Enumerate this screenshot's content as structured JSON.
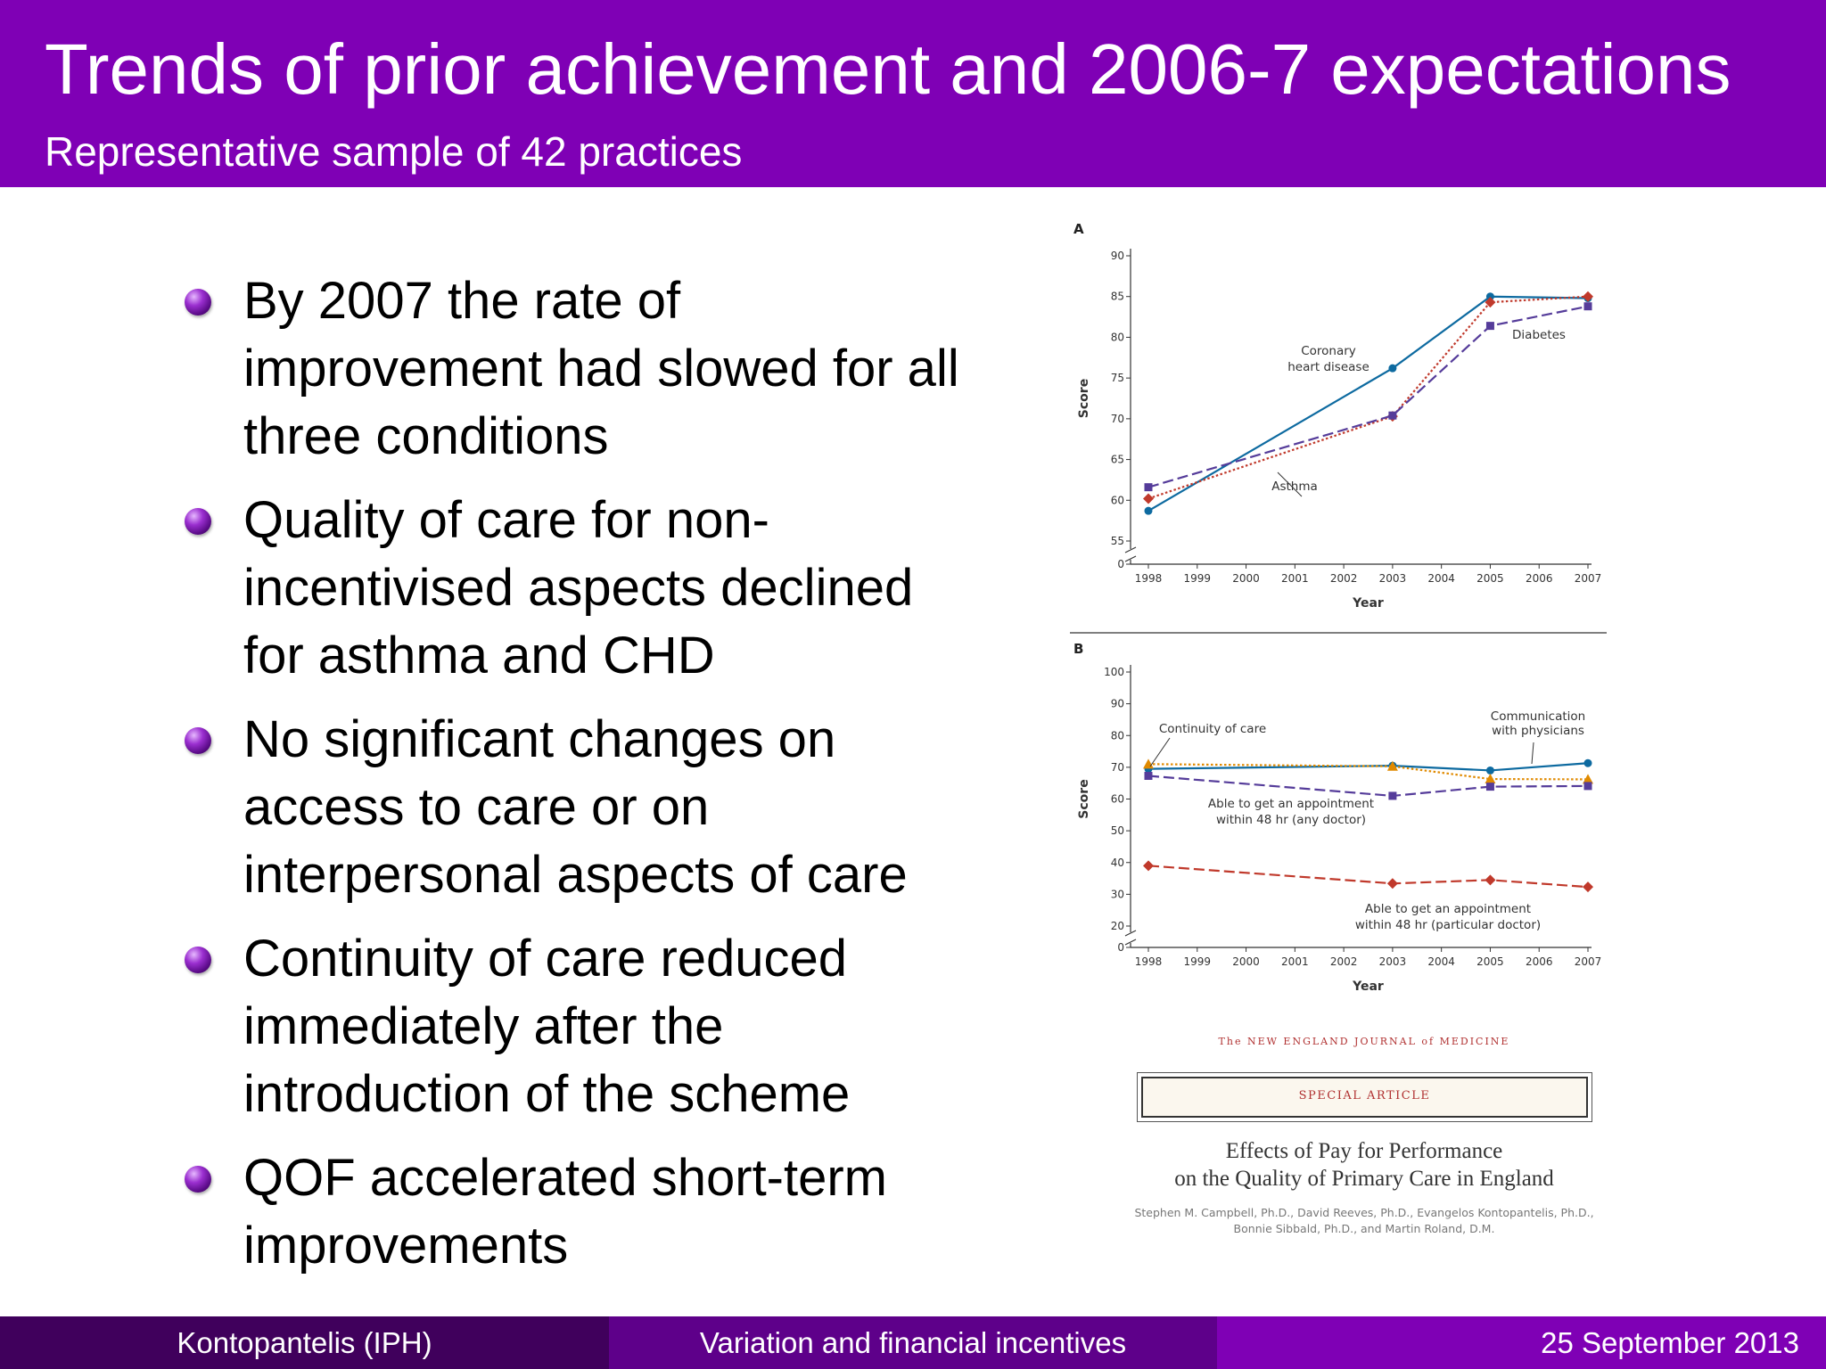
{
  "slide": {
    "title": "Trends of prior achievement and 2006-7 expectations",
    "subtitle": "Representative sample of 42 practices",
    "bullets": [
      "By 2007 the rate of improvement had slowed for all three conditions",
      "Quality of care for non-incentivised aspects declined for asthma and CHD",
      "No significant changes on access to care or on interpersonal aspects of care",
      "Continuity of care reduced immediately after the introduction of the scheme",
      "QOF accelerated short-term improvements"
    ],
    "colors": {
      "header": "#7f00b5",
      "footer_left": "#40005c",
      "footer_mid": "#5e008a",
      "footer_right": "#7f00b5"
    }
  },
  "footer": {
    "left": "Kontopantelis  (IPH)",
    "center": "Variation and financial incentives",
    "right": "25 September 2013"
  },
  "article": {
    "journal": "The NEW ENGLAND JOURNAL of MEDICINE",
    "section": "SPECIAL ARTICLE",
    "title_line1": "Effects of Pay for Performance",
    "title_line2": "on the Quality of Primary Care in England",
    "authors_line1": "Stephen M. Campbell, Ph.D., David Reeves, Ph.D., Evangelos Kontopantelis, Ph.D.,",
    "authors_line2": "Bonnie Sibbald, Ph.D., and Martin Roland, D.M."
  },
  "chart_data": [
    {
      "type": "line",
      "panel": "A",
      "xlabel": "Year",
      "ylabel": "Score",
      "x_ticks": [
        "1998",
        "1999",
        "2000",
        "2001",
        "2002",
        "2003",
        "2004",
        "2005",
        "2006",
        "2007"
      ],
      "y_ticks": [
        0,
        55,
        60,
        65,
        70,
        75,
        80,
        85,
        90
      ],
      "ylim": [
        55,
        90
      ],
      "axis_break": true,
      "series": [
        {
          "name": "Coronary heart disease",
          "color": "#0d6aa0",
          "dash": "solid",
          "marker": "circle",
          "x": [
            1998,
            2003,
            2005,
            2007
          ],
          "y": [
            58.7,
            76.2,
            85.0,
            84.8
          ]
        },
        {
          "name": "Asthma",
          "color": "#c0392b",
          "dash": "dotted",
          "marker": "diamond",
          "x": [
            1998,
            2003,
            2005,
            2007
          ],
          "y": [
            60.2,
            70.3,
            84.3,
            85.0
          ]
        },
        {
          "name": "Diabetes",
          "color": "#553c9a",
          "dash": "dashed",
          "marker": "square",
          "x": [
            1998,
            2003,
            2005,
            2007
          ],
          "y": [
            61.6,
            70.4,
            81.4,
            83.8
          ]
        }
      ],
      "annotations": [
        "Coronary",
        "heart disease",
        "Asthma",
        "Diabetes"
      ]
    },
    {
      "type": "line",
      "panel": "B",
      "xlabel": "Year",
      "ylabel": "Score",
      "x_ticks": [
        "1998",
        "1999",
        "2000",
        "2001",
        "2002",
        "2003",
        "2004",
        "2005",
        "2006",
        "2007"
      ],
      "y_ticks": [
        0,
        20,
        30,
        40,
        50,
        60,
        70,
        80,
        90,
        100
      ],
      "ylim": [
        20,
        100
      ],
      "axis_break": true,
      "series": [
        {
          "name": "Communication with physicians",
          "color": "#0d6aa0",
          "dash": "solid",
          "marker": "circle",
          "x": [
            1998,
            2003,
            2005,
            2007
          ],
          "y": [
            69.5,
            70.5,
            69.0,
            71.3
          ]
        },
        {
          "name": "Continuity of care",
          "color": "#e08a00",
          "dash": "dotted",
          "marker": "triangle",
          "x": [
            1998,
            2003,
            2005,
            2007
          ],
          "y": [
            71.0,
            70.3,
            66.3,
            66.2
          ]
        },
        {
          "name": "Able to get an appointment within 48 hr (any doctor)",
          "color": "#553c9a",
          "dash": "dashed",
          "marker": "square",
          "x": [
            1998,
            2003,
            2005,
            2007
          ],
          "y": [
            67.3,
            61.0,
            63.9,
            64.1
          ]
        },
        {
          "name": "Able to get an appointment within 48 hr (particular doctor)",
          "color": "#c0392b",
          "dash": "dashed",
          "marker": "diamond",
          "x": [
            1998,
            2003,
            2005,
            2007
          ],
          "y": [
            39.0,
            33.4,
            34.5,
            32.3
          ]
        }
      ],
      "annotations": [
        "Continuity of care",
        "Communication",
        "with physicians",
        "Able to get an appointment",
        "within 48 hr (any doctor)",
        "Able to get an appointment",
        "within 48 hr (particular doctor)"
      ]
    }
  ]
}
